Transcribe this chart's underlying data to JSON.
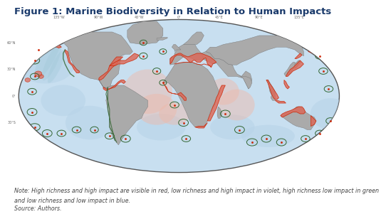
{
  "title": "Figure 1: Marine Biodiversity in Relation to Human Impacts",
  "title_color": "#1a3a6b",
  "title_fontsize": 9.5,
  "note_line1": "Note: High richness and high impact are visible in red, low richness and high impact in violet, high richness low impact in green",
  "note_line2": "and low richness and low impact in blue.",
  "source_line": "Source: Authors.",
  "note_fontsize": 5.8,
  "note_color": "#444444",
  "bg_color": "#ffffff",
  "ocean_color": "#c8dff0",
  "ocean_pale": "#ddeef8",
  "land_color": "#aaaaaa",
  "red_color": "#cc2200",
  "red_fill": "#dd6655",
  "salmon_color": "#f0b8a8",
  "green_color": "#336633",
  "blue_color": "#6699cc",
  "blue_pale": "#b8d4e8",
  "violet_color": "#9966aa",
  "border_color": "#555555",
  "figure_width": 4.74,
  "figure_height": 2.95,
  "lon_labels": [
    "135°W",
    "90°W",
    "45°W",
    "0°",
    "45°E",
    "90°E",
    "135°E"
  ],
  "lon_vals": [
    -135,
    -90,
    -45,
    0,
    45,
    90,
    135
  ],
  "lat_labels": [
    "60°N",
    "30°N",
    "0°",
    "30°S"
  ],
  "lat_vals": [
    60,
    30,
    0,
    -30
  ]
}
